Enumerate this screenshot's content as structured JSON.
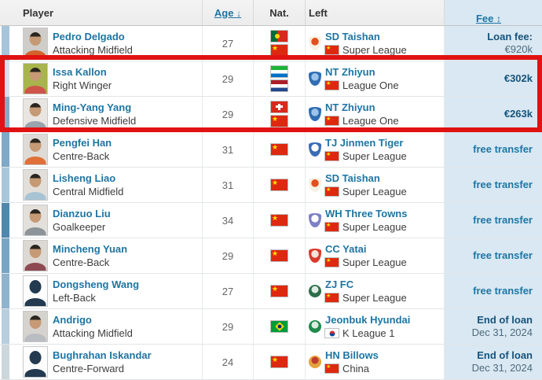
{
  "colors": {
    "link_blue": "#1d75a3",
    "fee_bg": "#d9e8f2",
    "fee_dark": "#15537c",
    "fee_sub": "#4e6a7c",
    "free_transfer": "#1d76a6",
    "highlight": "#e01212"
  },
  "header": {
    "player": "Player",
    "age": "Age",
    "age_arrow": "↓",
    "nat": "Nat.",
    "left": "Left",
    "fee": "Fee",
    "fee_arrow": "↕"
  },
  "badges": {
    "taishan": {
      "shape": "shield",
      "bg": "#f6f1e3",
      "accent": "#e0501e"
    },
    "zhiyun": {
      "shape": "shield",
      "bg": "#2f6db4",
      "accent": "#9cc4ea"
    },
    "jinmen": {
      "shape": "shield",
      "bg": "#3a6db6",
      "accent": "#ffffff"
    },
    "threetowns": {
      "shape": "shield",
      "bg": "#7d80c4",
      "accent": "#ffffff"
    },
    "yatai": {
      "shape": "shield",
      "bg": "#d93a2b",
      "accent": "#f3e3d8"
    },
    "zjfc": {
      "shape": "circle",
      "bg": "#2c6e49",
      "accent": "#dfeae2"
    },
    "jeonbuk": {
      "shape": "circle",
      "bg": "#1f8a4c",
      "accent": "#d9ecdf"
    },
    "billows": {
      "shape": "circle",
      "bg": "#e5a33c",
      "accent": "#c03c2e"
    }
  },
  "table": {
    "rows": [
      {
        "name": "Pedro Delgado",
        "position": "Attacking Midfield",
        "age": "27",
        "nat_flags": [
          "portugal",
          "china"
        ],
        "club": "SD Taishan",
        "club_badge": "taishan",
        "league": "Super League",
        "league_flag": "china",
        "fee_main": "Loan fee:",
        "fee_sub": "€920k",
        "strip_color": "#a6c5da",
        "photo": "real",
        "photo_bg": "#cfcdc9",
        "shirt": "#d4622e"
      },
      {
        "name": "Issa Kallon",
        "position": "Right Winger",
        "age": "29",
        "nat_flags": [
          "sierra-leone",
          "netherlands"
        ],
        "club": "NT Zhiyun",
        "club_badge": "zhiyun",
        "league": "League One",
        "league_flag": "china",
        "fee_main": "€302k",
        "fee_sub": "",
        "strip_color": "#d9e2ea",
        "photo": "real",
        "photo_bg": "#a8b44c",
        "shirt": "#cf5548"
      },
      {
        "name": "Ming-Yang Yang",
        "position": "Defensive Midfield",
        "age": "29",
        "nat_flags": [
          "switzerland",
          "china"
        ],
        "club": "NT Zhiyun",
        "club_badge": "zhiyun",
        "league": "League One",
        "league_flag": "china",
        "fee_main": "€263k",
        "fee_sub": "",
        "strip_color": "#84aac8",
        "photo": "real",
        "photo_bg": "#e9e6e1",
        "shirt": "#9aa4ac"
      },
      {
        "name": "Pengfei Han",
        "position": "Centre-Back",
        "age": "31",
        "nat_flags": [
          "china"
        ],
        "club": "TJ Jinmen Tiger",
        "club_badge": "jinmen",
        "league": "Super League",
        "league_flag": "china",
        "fee_main": "free transfer",
        "fee_sub": "",
        "strip_color": "#7fa9c7",
        "photo": "real",
        "photo_bg": "#dedbd7",
        "shirt": "#e07038"
      },
      {
        "name": "Lisheng Liao",
        "position": "Central Midfield",
        "age": "31",
        "nat_flags": [
          "china"
        ],
        "club": "SD Taishan",
        "club_badge": "taishan",
        "league": "Super League",
        "league_flag": "china",
        "fee_main": "free transfer",
        "fee_sub": "",
        "strip_color": "#a9c7db",
        "photo": "real",
        "photo_bg": "#e2dfda",
        "shirt": "#a8c4d4"
      },
      {
        "name": "Dianzuo Liu",
        "position": "Goalkeeper",
        "age": "34",
        "nat_flags": [
          "china"
        ],
        "club": "WH Three Towns",
        "club_badge": "threetowns",
        "league": "Super League",
        "league_flag": "china",
        "fee_main": "free transfer",
        "fee_sub": "",
        "strip_color": "#4f87ad",
        "photo": "real",
        "photo_bg": "#e3e0db",
        "shirt": "#8c9499"
      },
      {
        "name": "Mincheng Yuan",
        "position": "Centre-Back",
        "age": "29",
        "nat_flags": [
          "china"
        ],
        "club": "CC Yatai",
        "club_badge": "yatai",
        "league": "Super League",
        "league_flag": "china",
        "fee_main": "free transfer",
        "fee_sub": "",
        "strip_color": "#78a5c4",
        "photo": "real",
        "photo_bg": "#dcd9d4",
        "shirt": "#8e4a52"
      },
      {
        "name": "Dongsheng Wang",
        "position": "Left-Back",
        "age": "27",
        "nat_flags": [
          "china"
        ],
        "club": "ZJ FC",
        "club_badge": "zjfc",
        "league": "Super League",
        "league_flag": "china",
        "fee_main": "free transfer",
        "fee_sub": "",
        "strip_color": "#8fb3cd",
        "photo": "silhouette",
        "photo_bg": "#fdfdfd",
        "shirt": "#233a50"
      },
      {
        "name": "Andrigo",
        "position": "Attacking Midfield",
        "age": "29",
        "nat_flags": [
          "brazil"
        ],
        "club": "Jeonbuk Hyundai",
        "club_badge": "jeonbuk",
        "league": "K League 1",
        "league_flag": "south-korea",
        "fee_main": "End of loan",
        "fee_sub": "Dec 31, 2024",
        "strip_color": "#b7cede",
        "photo": "real",
        "photo_bg": "#d6d3ce",
        "shirt": "#b9bdc1"
      },
      {
        "name": "Bughrahan Iskandar",
        "position": "Centre-Forward",
        "age": "24",
        "nat_flags": [
          "china"
        ],
        "club": "HN Billows",
        "club_badge": "billows",
        "league": "China",
        "league_flag": "china",
        "fee_main": "End of loan",
        "fee_sub": "Dec 31, 2024",
        "strip_color": "#ccd6dd",
        "photo": "silhouette",
        "photo_bg": "#fdfdfd",
        "shirt": "#233a50"
      }
    ]
  }
}
